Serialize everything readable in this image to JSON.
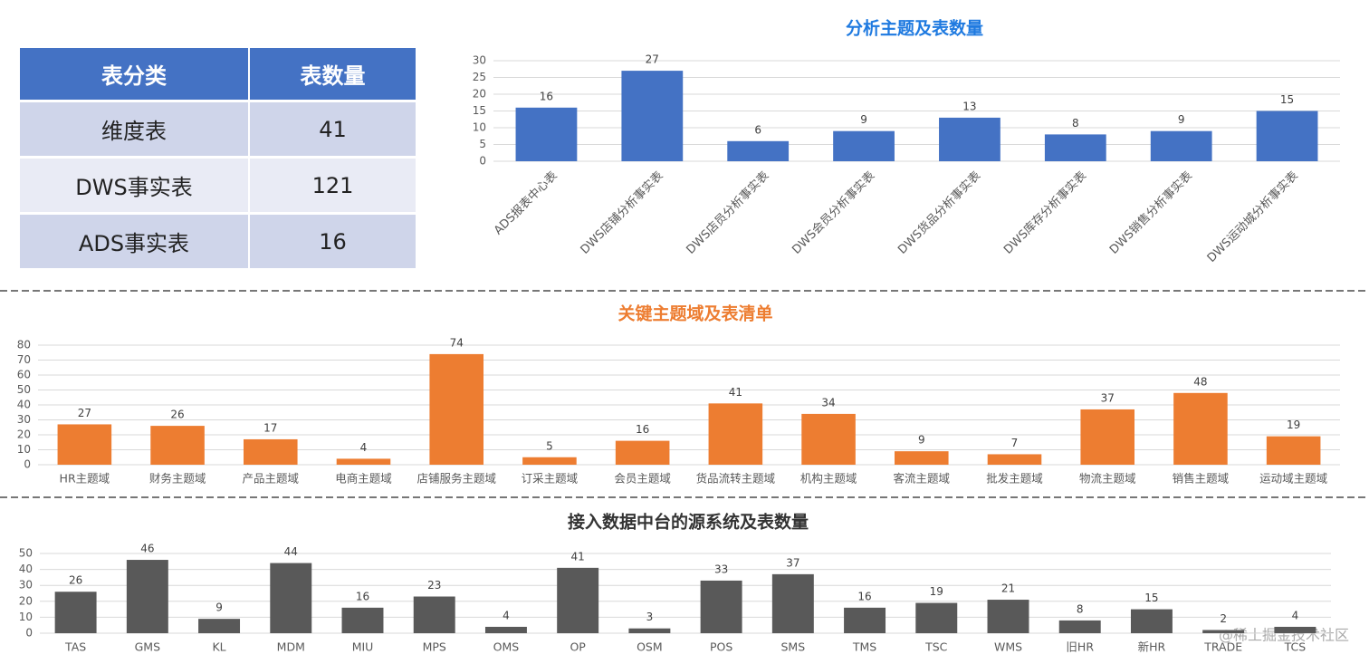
{
  "table": {
    "header": [
      "表分类",
      "表数量"
    ],
    "rows": [
      [
        "维度表",
        "41"
      ],
      [
        "DWS事实表",
        "121"
      ],
      [
        "ADS事实表",
        "16"
      ]
    ]
  },
  "watermark": "@稀土掘金技术社区",
  "chart_data": [
    {
      "type": "bar",
      "title": "分析主题及表数量",
      "title_color": "#1f7ae0",
      "color": "#4472c4",
      "categories": [
        "ADS报表中心表",
        "DWS店铺分析事实表",
        "DWS店员分析事实表",
        "DWS会员分析事实表",
        "DWS货品分析事实表",
        "DWS库存分析事实表",
        "DWS销售分析事实表",
        "DWS运动城分析事实表"
      ],
      "values": [
        16,
        27,
        6,
        9,
        13,
        8,
        9,
        15
      ],
      "ylim": [
        0,
        30
      ],
      "yticks": [
        0,
        5,
        10,
        15,
        20,
        25,
        30
      ],
      "grid": true
    },
    {
      "type": "bar",
      "title": "关键主题域及表清单",
      "title_color": "#ed7d31",
      "color": "#ed7d31",
      "categories": [
        "HR主题域",
        "财务主题域",
        "产品主题域",
        "电商主题域",
        "店铺服务主题域",
        "订采主题域",
        "会员主题域",
        "货品流转主题域",
        "机构主题域",
        "客流主题域",
        "批发主题域",
        "物流主题域",
        "销售主题域",
        "运动域主题域"
      ],
      "values": [
        27,
        26,
        17,
        4,
        74,
        5,
        16,
        41,
        34,
        9,
        7,
        37,
        48,
        19
      ],
      "ylim": [
        0,
        80
      ],
      "yticks": [
        0,
        10,
        20,
        30,
        40,
        50,
        60,
        70,
        80
      ],
      "grid": true
    },
    {
      "type": "bar",
      "title": "接入数据中台的源系统及表数量",
      "title_color": "#333333",
      "color": "#595959",
      "categories": [
        "TAS",
        "GMS",
        "KL",
        "MDM",
        "MIU",
        "MPS",
        "OMS",
        "OP",
        "OSM",
        "POS",
        "SMS",
        "TMS",
        "TSC",
        "WMS",
        "旧HR",
        "新HR",
        "TRADE",
        "TCS"
      ],
      "values": [
        26,
        46,
        9,
        44,
        16,
        23,
        4,
        41,
        3,
        33,
        37,
        16,
        19,
        21,
        8,
        15,
        2,
        4
      ],
      "ylim": [
        0,
        50
      ],
      "yticks": [
        0,
        10,
        20,
        30,
        40,
        50
      ],
      "grid": true
    }
  ]
}
